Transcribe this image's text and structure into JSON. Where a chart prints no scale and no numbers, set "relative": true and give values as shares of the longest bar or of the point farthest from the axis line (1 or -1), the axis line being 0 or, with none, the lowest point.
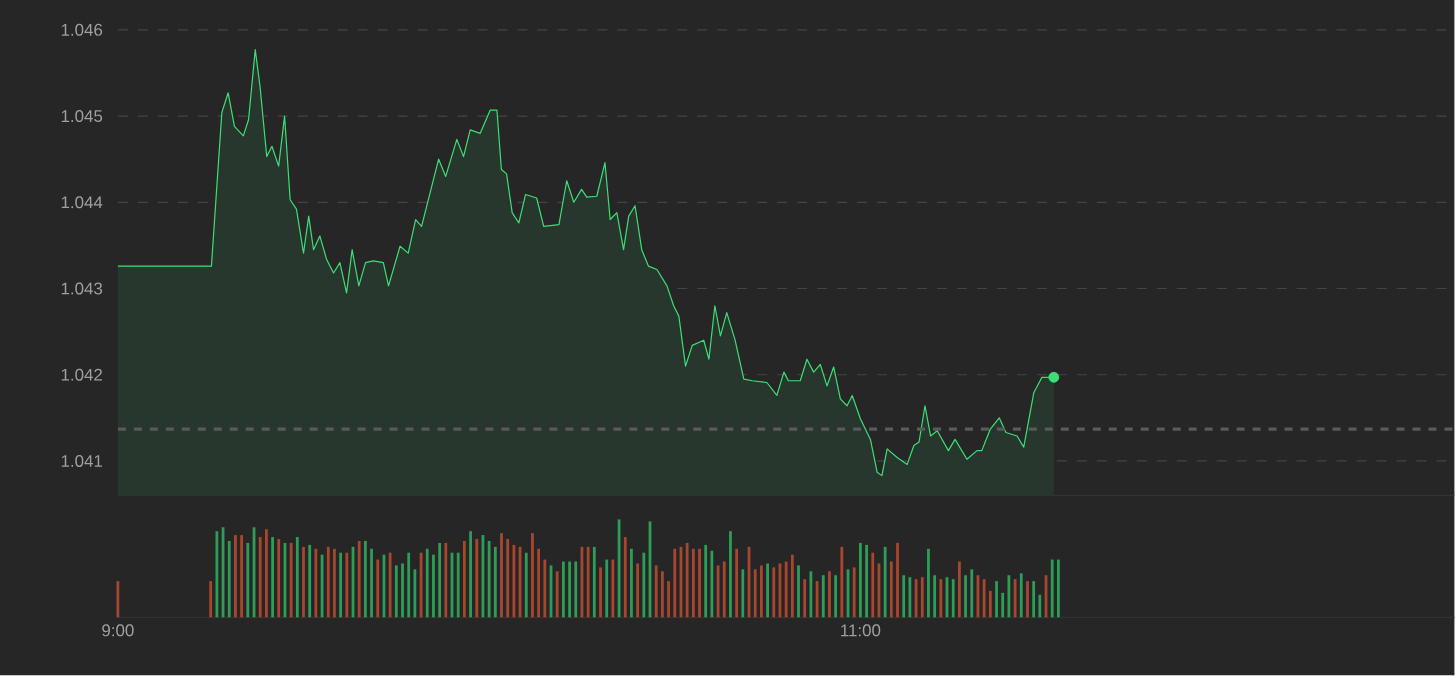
{
  "chart_data": [
    {
      "type": "area",
      "color": "#3ddf75",
      "grid": "y",
      "tick_labels": "y",
      "xlim": [
        9,
        12.6
      ],
      "ylim": [
        1.0406,
        1.0463
      ],
      "yticks": [
        1.041,
        1.042,
        1.043,
        1.044,
        1.045,
        1.046
      ],
      "ref_lines": [
        {
          "axis": "y",
          "value": 1.04137,
          "color": "#5a5a5a",
          "line_style": "dashed"
        }
      ],
      "x": [
        9.0,
        9.252,
        9.28,
        9.297,
        9.314,
        9.338,
        9.352,
        9.37,
        9.383,
        9.401,
        9.415,
        9.433,
        9.449,
        9.464,
        9.481,
        9.5,
        9.514,
        9.527,
        9.544,
        9.562,
        9.581,
        9.598,
        9.616,
        9.631,
        9.649,
        9.667,
        9.688,
        9.715,
        9.729,
        9.76,
        9.782,
        9.802,
        9.818,
        9.841,
        9.864,
        9.883,
        9.913,
        9.931,
        9.949,
        9.976,
        10.003,
        10.021,
        10.033,
        10.047,
        10.062,
        10.08,
        10.098,
        10.128,
        10.147,
        10.188,
        10.209,
        10.228,
        10.249,
        10.263,
        10.29,
        10.312,
        10.326,
        10.344,
        10.362,
        10.376,
        10.393,
        10.411,
        10.429,
        10.452,
        10.479,
        10.497,
        10.511,
        10.529,
        10.547,
        10.578,
        10.592,
        10.608,
        10.623,
        10.64,
        10.662,
        10.686,
        10.709,
        10.748,
        10.775,
        10.794,
        10.806,
        10.838,
        10.856,
        10.874,
        10.892,
        10.91,
        10.928,
        10.946,
        10.964,
        10.978,
        11.0,
        11.027,
        11.045,
        11.058,
        11.072,
        11.099,
        11.126,
        11.144,
        11.158,
        11.174,
        11.189,
        11.207,
        11.237,
        11.255,
        11.287,
        11.314,
        11.327,
        11.35,
        11.374,
        11.392,
        11.422,
        11.44,
        11.467,
        11.489,
        11.521
      ],
      "values": [
        1.04326,
        1.04326,
        1.04504,
        1.04527,
        1.04488,
        1.04477,
        1.04496,
        1.04577,
        1.04534,
        1.04453,
        1.04465,
        1.04442,
        1.045,
        1.04403,
        1.04392,
        1.04341,
        1.04384,
        1.04345,
        1.04361,
        1.04334,
        1.04318,
        1.0433,
        1.04295,
        1.04345,
        1.04303,
        1.0433,
        1.04332,
        1.0433,
        1.04303,
        1.04349,
        1.04341,
        1.0438,
        1.04372,
        1.04411,
        1.0445,
        1.0443,
        1.04473,
        1.04453,
        1.04484,
        1.0448,
        1.04507,
        1.04507,
        1.04438,
        1.04433,
        1.04388,
        1.04376,
        1.04409,
        1.04405,
        1.04372,
        1.04374,
        1.04425,
        1.044,
        1.04415,
        1.04406,
        1.04407,
        1.04446,
        1.0438,
        1.04388,
        1.04345,
        1.04384,
        1.04396,
        1.04345,
        1.04326,
        1.04322,
        1.04303,
        1.0428,
        1.04268,
        1.0421,
        1.04234,
        1.0424,
        1.04218,
        1.0428,
        1.04245,
        1.04272,
        1.04241,
        1.04195,
        1.04193,
        1.04191,
        1.04176,
        1.04203,
        1.04193,
        1.04193,
        1.04218,
        1.04203,
        1.04212,
        1.04187,
        1.04209,
        1.04172,
        1.04164,
        1.04176,
        1.04149,
        1.04125,
        1.04087,
        1.04083,
        1.04114,
        1.04104,
        1.04096,
        1.04118,
        1.04122,
        1.04164,
        1.04129,
        1.04135,
        1.04112,
        1.04125,
        1.04102,
        1.04112,
        1.04112,
        1.04137,
        1.0415,
        1.04133,
        1.04129,
        1.04116,
        1.04179,
        1.04197,
        1.04197
      ]
    },
    {
      "type": "bar",
      "relative": true,
      "xlim": [
        9,
        12.6
      ],
      "xticks": [
        {
          "value": 9,
          "label": "9:00"
        },
        {
          "value": 11,
          "label": "11:00"
        }
      ],
      "x": [
        9.0,
        9.25,
        9.2667,
        9.2833,
        9.3,
        9.3167,
        9.3333,
        9.35,
        9.3667,
        9.3833,
        9.4,
        9.4167,
        9.4333,
        9.45,
        9.4667,
        9.4833,
        9.5,
        9.5167,
        9.5333,
        9.55,
        9.5667,
        9.5833,
        9.6,
        9.6167,
        9.6333,
        9.65,
        9.6667,
        9.6833,
        9.7,
        9.7167,
        9.7333,
        9.75,
        9.7667,
        9.7833,
        9.8,
        9.8167,
        9.8333,
        9.85,
        9.8667,
        9.8833,
        9.9,
        9.9167,
        9.9333,
        9.95,
        9.9667,
        9.9833,
        10.0,
        10.0167,
        10.0333,
        10.05,
        10.0667,
        10.0833,
        10.1,
        10.1167,
        10.1333,
        10.15,
        10.1667,
        10.1833,
        10.2,
        10.2167,
        10.2333,
        10.25,
        10.2667,
        10.2833,
        10.3,
        10.3167,
        10.3333,
        10.35,
        10.3667,
        10.3833,
        10.4,
        10.4167,
        10.4333,
        10.45,
        10.4667,
        10.4833,
        10.5,
        10.5167,
        10.5333,
        10.55,
        10.5667,
        10.5833,
        10.6,
        10.6167,
        10.6333,
        10.65,
        10.6667,
        10.6833,
        10.7,
        10.7167,
        10.7333,
        10.75,
        10.7667,
        10.7833,
        10.8,
        10.8167,
        10.8333,
        10.85,
        10.8667,
        10.8833,
        10.9,
        10.9167,
        10.9333,
        10.95,
        10.9667,
        10.9833,
        11.0,
        11.0167,
        11.0333,
        11.05,
        11.0667,
        11.0833,
        11.1,
        11.1167,
        11.1333,
        11.15,
        11.1667,
        11.1833,
        11.2,
        11.2167,
        11.2333,
        11.25,
        11.2667,
        11.2833,
        11.3,
        11.3167,
        11.3333,
        11.35,
        11.3667,
        11.3833,
        11.4,
        11.4167,
        11.4333,
        11.45,
        11.4667,
        11.4833,
        11.5,
        11.5167,
        11.5333
      ],
      "values": [
        0.37,
        0.37,
        0.88,
        0.92,
        0.78,
        0.84,
        0.84,
        0.76,
        0.92,
        0.82,
        0.9,
        0.82,
        0.8,
        0.76,
        0.76,
        0.82,
        0.72,
        0.74,
        0.7,
        0.64,
        0.72,
        0.7,
        0.66,
        0.66,
        0.72,
        0.78,
        0.78,
        0.7,
        0.59,
        0.64,
        0.66,
        0.53,
        0.55,
        0.66,
        0.49,
        0.66,
        0.7,
        0.64,
        0.76,
        0.76,
        0.66,
        0.66,
        0.78,
        0.88,
        0.8,
        0.84,
        0.78,
        0.72,
        0.86,
        0.8,
        0.74,
        0.72,
        0.66,
        0.86,
        0.7,
        0.59,
        0.53,
        0.47,
        0.57,
        0.57,
        0.57,
        0.72,
        0.72,
        0.72,
        0.51,
        0.59,
        0.59,
        1.0,
        0.82,
        0.7,
        0.55,
        0.66,
        0.98,
        0.53,
        0.47,
        0.37,
        0.7,
        0.72,
        0.76,
        0.7,
        0.7,
        0.74,
        0.68,
        0.53,
        0.57,
        0.88,
        0.7,
        0.49,
        0.72,
        0.49,
        0.53,
        0.55,
        0.51,
        0.55,
        0.57,
        0.64,
        0.53,
        0.39,
        0.47,
        0.37,
        0.43,
        0.47,
        0.43,
        0.72,
        0.49,
        0.51,
        0.76,
        0.74,
        0.66,
        0.55,
        0.72,
        0.57,
        0.76,
        0.43,
        0.41,
        0.39,
        0.41,
        0.7,
        0.43,
        0.39,
        0.41,
        0.39,
        0.57,
        0.43,
        0.49,
        0.43,
        0.39,
        0.27,
        0.37,
        0.25,
        0.43,
        0.39,
        0.45,
        0.37,
        0.37,
        0.23,
        0.43,
        0.59,
        0.59
      ],
      "colors": [
        "#a8472f",
        "#a8472f",
        "#2e9d57",
        "#2e9d57",
        "#2e9d57",
        "#a8472f",
        "#a8472f",
        "#2e9d57",
        "#2e9d57",
        "#a8472f",
        "#a8472f",
        "#2e9d57",
        "#a8472f",
        "#2e9d57",
        "#a8472f",
        "#2e9d57",
        "#a8472f",
        "#2e9d57",
        "#a8472f",
        "#2e9d57",
        "#a8472f",
        "#a8472f",
        "#2e9d57",
        "#a8472f",
        "#2e9d57",
        "#a8472f",
        "#2e9d57",
        "#2e9d57",
        "#a8472f",
        "#2e9d57",
        "#a8472f",
        "#2e9d57",
        "#2e9d57",
        "#2e9d57",
        "#2e9d57",
        "#a8472f",
        "#2e9d57",
        "#2e9d57",
        "#2e9d57",
        "#a8472f",
        "#2e9d57",
        "#2e9d57",
        "#a8472f",
        "#2e9d57",
        "#a8472f",
        "#2e9d57",
        "#2e9d57",
        "#2e9d57",
        "#a8472f",
        "#a8472f",
        "#a8472f",
        "#a8472f",
        "#2e9d57",
        "#a8472f",
        "#a8472f",
        "#a8472f",
        "#2e9d57",
        "#a8472f",
        "#2e9d57",
        "#2e9d57",
        "#2e9d57",
        "#a8472f",
        "#a8472f",
        "#2e9d57",
        "#a8472f",
        "#2e9d57",
        "#a8472f",
        "#2e9d57",
        "#a8472f",
        "#2e9d57",
        "#a8472f",
        "#2e9d57",
        "#2e9d57",
        "#a8472f",
        "#a8472f",
        "#a8472f",
        "#a8472f",
        "#a8472f",
        "#a8472f",
        "#a8472f",
        "#a8472f",
        "#2e9d57",
        "#2e9d57",
        "#a8472f",
        "#a8472f",
        "#2e9d57",
        "#a8472f",
        "#2e9d57",
        "#a8472f",
        "#a8472f",
        "#a8472f",
        "#2e9d57",
        "#a8472f",
        "#a8472f",
        "#a8472f",
        "#a8472f",
        "#2e9d57",
        "#a8472f",
        "#2e9d57",
        "#a8472f",
        "#2e9d57",
        "#a8472f",
        "#2e9d57",
        "#a8472f",
        "#2e9d57",
        "#a8472f",
        "#2e9d57",
        "#2e9d57",
        "#a8472f",
        "#a8472f",
        "#2e9d57",
        "#a8472f",
        "#a8472f",
        "#2e9d57",
        "#2e9d57",
        "#a8472f",
        "#a8472f",
        "#2e9d57",
        "#2e9d57",
        "#a8472f",
        "#2e9d57",
        "#2e9d57",
        "#a8472f",
        "#2e9d57",
        "#2e9d57",
        "#a8472f",
        "#a8472f",
        "#a8472f",
        "#2e9d57",
        "#2e9d57",
        "#2e9d57",
        "#a8472f",
        "#2e9d57",
        "#a8472f",
        "#2e9d57",
        "#2e9d57",
        "#a8472f",
        "#2e9d57",
        "#2e9d57"
      ]
    }
  ]
}
